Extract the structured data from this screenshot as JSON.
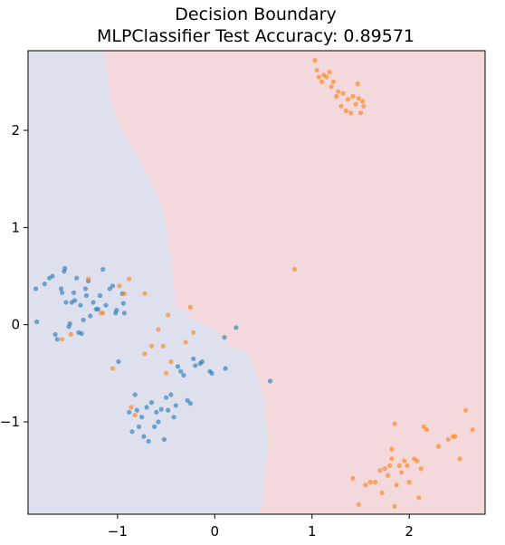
{
  "chart_data": {
    "type": "scatter",
    "title_line1": "Decision Boundary",
    "title_line2": "MLPClassifier Test Accuracy: 0.89571",
    "xlabel": "",
    "ylabel": "",
    "xlim": [
      -1.92,
      2.78
    ],
    "ylim": [
      -1.95,
      2.82
    ],
    "x_ticks": [
      -1,
      0,
      1,
      2
    ],
    "x_tick_labels": [
      "−1",
      "0",
      "1",
      "2"
    ],
    "y_ticks": [
      -1,
      0,
      1,
      2
    ],
    "y_tick_labels": [
      "−1",
      "0",
      "1",
      "2"
    ],
    "grid": false,
    "colors": {
      "region_class_0": "#dfe0ee",
      "region_class_1": "#f3d8dc",
      "class_0": "#1f77b4",
      "class_1": "#ff7f0e"
    },
    "decision_boundary": [
      [
        -1.13,
        2.82
      ],
      [
        -1.08,
        2.3
      ],
      [
        -0.95,
        2.0
      ],
      [
        -0.8,
        1.75
      ],
      [
        -0.55,
        1.25
      ],
      [
        -0.45,
        0.7
      ],
      [
        -0.4,
        0.2
      ],
      [
        -0.2,
        0.05
      ],
      [
        0.0,
        -0.05
      ],
      [
        0.15,
        -0.22
      ],
      [
        0.35,
        -0.3
      ],
      [
        0.5,
        -0.75
      ],
      [
        0.55,
        -1.2
      ],
      [
        0.5,
        -1.7
      ],
      [
        0.47,
        -1.95
      ]
    ],
    "series": [
      {
        "class": 0,
        "points": [
          [
            -1.84,
            0.37
          ],
          [
            -1.83,
            0.03
          ],
          [
            -1.75,
            0.42
          ],
          [
            -1.7,
            0.48
          ],
          [
            -1.67,
            0.5
          ],
          [
            -1.64,
            -0.1
          ],
          [
            -1.62,
            -0.15
          ],
          [
            -1.58,
            0.37
          ],
          [
            -1.57,
            0.33
          ],
          [
            -1.55,
            0.55
          ],
          [
            -1.54,
            0.58
          ],
          [
            -1.53,
            0.23
          ],
          [
            -1.5,
            -0.02
          ],
          [
            -1.49,
            0.01
          ],
          [
            -1.47,
            0.23
          ],
          [
            -1.45,
            0.33
          ],
          [
            -1.44,
            0.25
          ],
          [
            -1.42,
            0.48
          ],
          [
            -1.4,
            -0.08
          ],
          [
            -1.38,
            0.2
          ],
          [
            -1.37,
            -0.09
          ],
          [
            -1.35,
            0.05
          ],
          [
            -1.33,
            0.37
          ],
          [
            -1.32,
            0.3
          ],
          [
            -1.3,
            0.45
          ],
          [
            -1.28,
            0.09
          ],
          [
            -1.25,
            0.23
          ],
          [
            -1.22,
            0.16
          ],
          [
            -1.2,
            0.16
          ],
          [
            -1.18,
            0.3
          ],
          [
            -1.15,
            0.57
          ],
          [
            -1.12,
            0.2
          ],
          [
            -1.08,
            0.37
          ],
          [
            -1.05,
            0.4
          ],
          [
            -1.02,
            0.12
          ],
          [
            -1.01,
            0.15
          ],
          [
            -0.95,
            0.32
          ],
          [
            -0.94,
            0.22
          ],
          [
            -0.93,
            0.12
          ],
          [
            -0.99,
            -0.38
          ],
          [
            -0.88,
            -0.9
          ],
          [
            -0.85,
            -1.1
          ],
          [
            -0.82,
            -0.72
          ],
          [
            -0.8,
            -0.88
          ],
          [
            -0.78,
            -1.05
          ],
          [
            -0.75,
            -0.95
          ],
          [
            -0.73,
            -1.15
          ],
          [
            -0.7,
            -0.85
          ],
          [
            -0.68,
            -1.2
          ],
          [
            -0.65,
            -0.8
          ],
          [
            -0.62,
            -1.05
          ],
          [
            -0.6,
            -0.9
          ],
          [
            -0.58,
            -1.0
          ],
          [
            -0.55,
            -0.87
          ],
          [
            -0.52,
            -1.18
          ],
          [
            -0.5,
            -0.75
          ],
          [
            -0.48,
            -0.88
          ],
          [
            -0.45,
            -0.72
          ],
          [
            -0.42,
            -0.95
          ],
          [
            -0.4,
            -0.83
          ],
          [
            -0.38,
            -0.43
          ],
          [
            -0.35,
            -0.48
          ],
          [
            -0.32,
            -0.52
          ],
          [
            -0.28,
            -0.78
          ],
          [
            -0.25,
            -0.81
          ],
          [
            -0.22,
            -0.35
          ],
          [
            -0.2,
            -0.42
          ],
          [
            -0.15,
            -0.4
          ],
          [
            -0.13,
            -0.38
          ],
          [
            -0.05,
            -0.48
          ],
          [
            -0.03,
            -0.5
          ],
          [
            0.1,
            -0.13
          ],
          [
            0.11,
            -0.45
          ],
          [
            0.22,
            -0.03
          ],
          [
            0.57,
            -0.58
          ]
        ]
      },
      {
        "class": 1,
        "points": [
          [
            -1.57,
            -0.15
          ],
          [
            -1.48,
            -0.1
          ],
          [
            -1.3,
            0.47
          ],
          [
            -1.17,
            0.12
          ],
          [
            -1.15,
            0.12
          ],
          [
            -1.05,
            -0.45
          ],
          [
            -0.98,
            0.4
          ],
          [
            -0.93,
            0.32
          ],
          [
            -0.86,
            -0.85
          ],
          [
            -0.82,
            -0.93
          ],
          [
            -0.72,
            -0.3
          ],
          [
            -0.65,
            -0.22
          ],
          [
            -0.58,
            -0.05
          ],
          [
            -0.53,
            -0.22
          ],
          [
            -0.5,
            -0.5
          ],
          [
            -0.48,
            0.1
          ],
          [
            -0.45,
            -0.38
          ],
          [
            -0.3,
            -0.18
          ],
          [
            -0.25,
            0.18
          ],
          [
            -0.22,
            -0.08
          ],
          [
            -0.88,
            0.47
          ],
          [
            -0.72,
            0.32
          ],
          [
            0.82,
            0.57
          ],
          [
            1.03,
            2.72
          ],
          [
            1.05,
            2.62
          ],
          [
            1.07,
            2.55
          ],
          [
            1.1,
            2.5
          ],
          [
            1.12,
            2.57
          ],
          [
            1.15,
            2.55
          ],
          [
            1.18,
            2.6
          ],
          [
            1.2,
            2.45
          ],
          [
            1.22,
            2.5
          ],
          [
            1.25,
            2.35
          ],
          [
            1.27,
            2.4
          ],
          [
            1.3,
            2.25
          ],
          [
            1.32,
            2.38
          ],
          [
            1.35,
            2.2
          ],
          [
            1.37,
            2.32
          ],
          [
            1.4,
            2.18
          ],
          [
            1.42,
            2.35
          ],
          [
            1.45,
            2.27
          ],
          [
            1.47,
            2.48
          ],
          [
            1.48,
            2.33
          ],
          [
            1.5,
            2.18
          ],
          [
            1.52,
            2.3
          ],
          [
            1.53,
            2.25
          ],
          [
            1.42,
            -1.58
          ],
          [
            1.48,
            -1.85
          ],
          [
            1.55,
            -1.65
          ],
          [
            1.6,
            -1.62
          ],
          [
            1.65,
            -1.62
          ],
          [
            1.7,
            -1.5
          ],
          [
            1.72,
            -1.73
          ],
          [
            1.75,
            -1.48
          ],
          [
            1.78,
            -1.55
          ],
          [
            1.8,
            -1.45
          ],
          [
            1.82,
            -1.38
          ],
          [
            1.85,
            -1.87
          ],
          [
            1.87,
            -1.65
          ],
          [
            1.9,
            -1.45
          ],
          [
            1.92,
            -1.52
          ],
          [
            1.95,
            -1.4
          ],
          [
            1.98,
            -1.45
          ],
          [
            2.0,
            -1.62
          ],
          [
            2.05,
            -1.38
          ],
          [
            2.08,
            -1.4
          ],
          [
            2.1,
            -1.78
          ],
          [
            2.12,
            -1.48
          ],
          [
            2.15,
            -1.05
          ],
          [
            2.18,
            -1.08
          ],
          [
            2.3,
            -1.25
          ],
          [
            2.4,
            -1.18
          ],
          [
            2.45,
            -1.15
          ],
          [
            2.47,
            -1.15
          ],
          [
            2.52,
            -1.38
          ],
          [
            2.58,
            -0.88
          ],
          [
            2.65,
            -1.08
          ],
          [
            1.85,
            -1.02
          ],
          [
            1.82,
            -1.28
          ]
        ]
      }
    ]
  }
}
